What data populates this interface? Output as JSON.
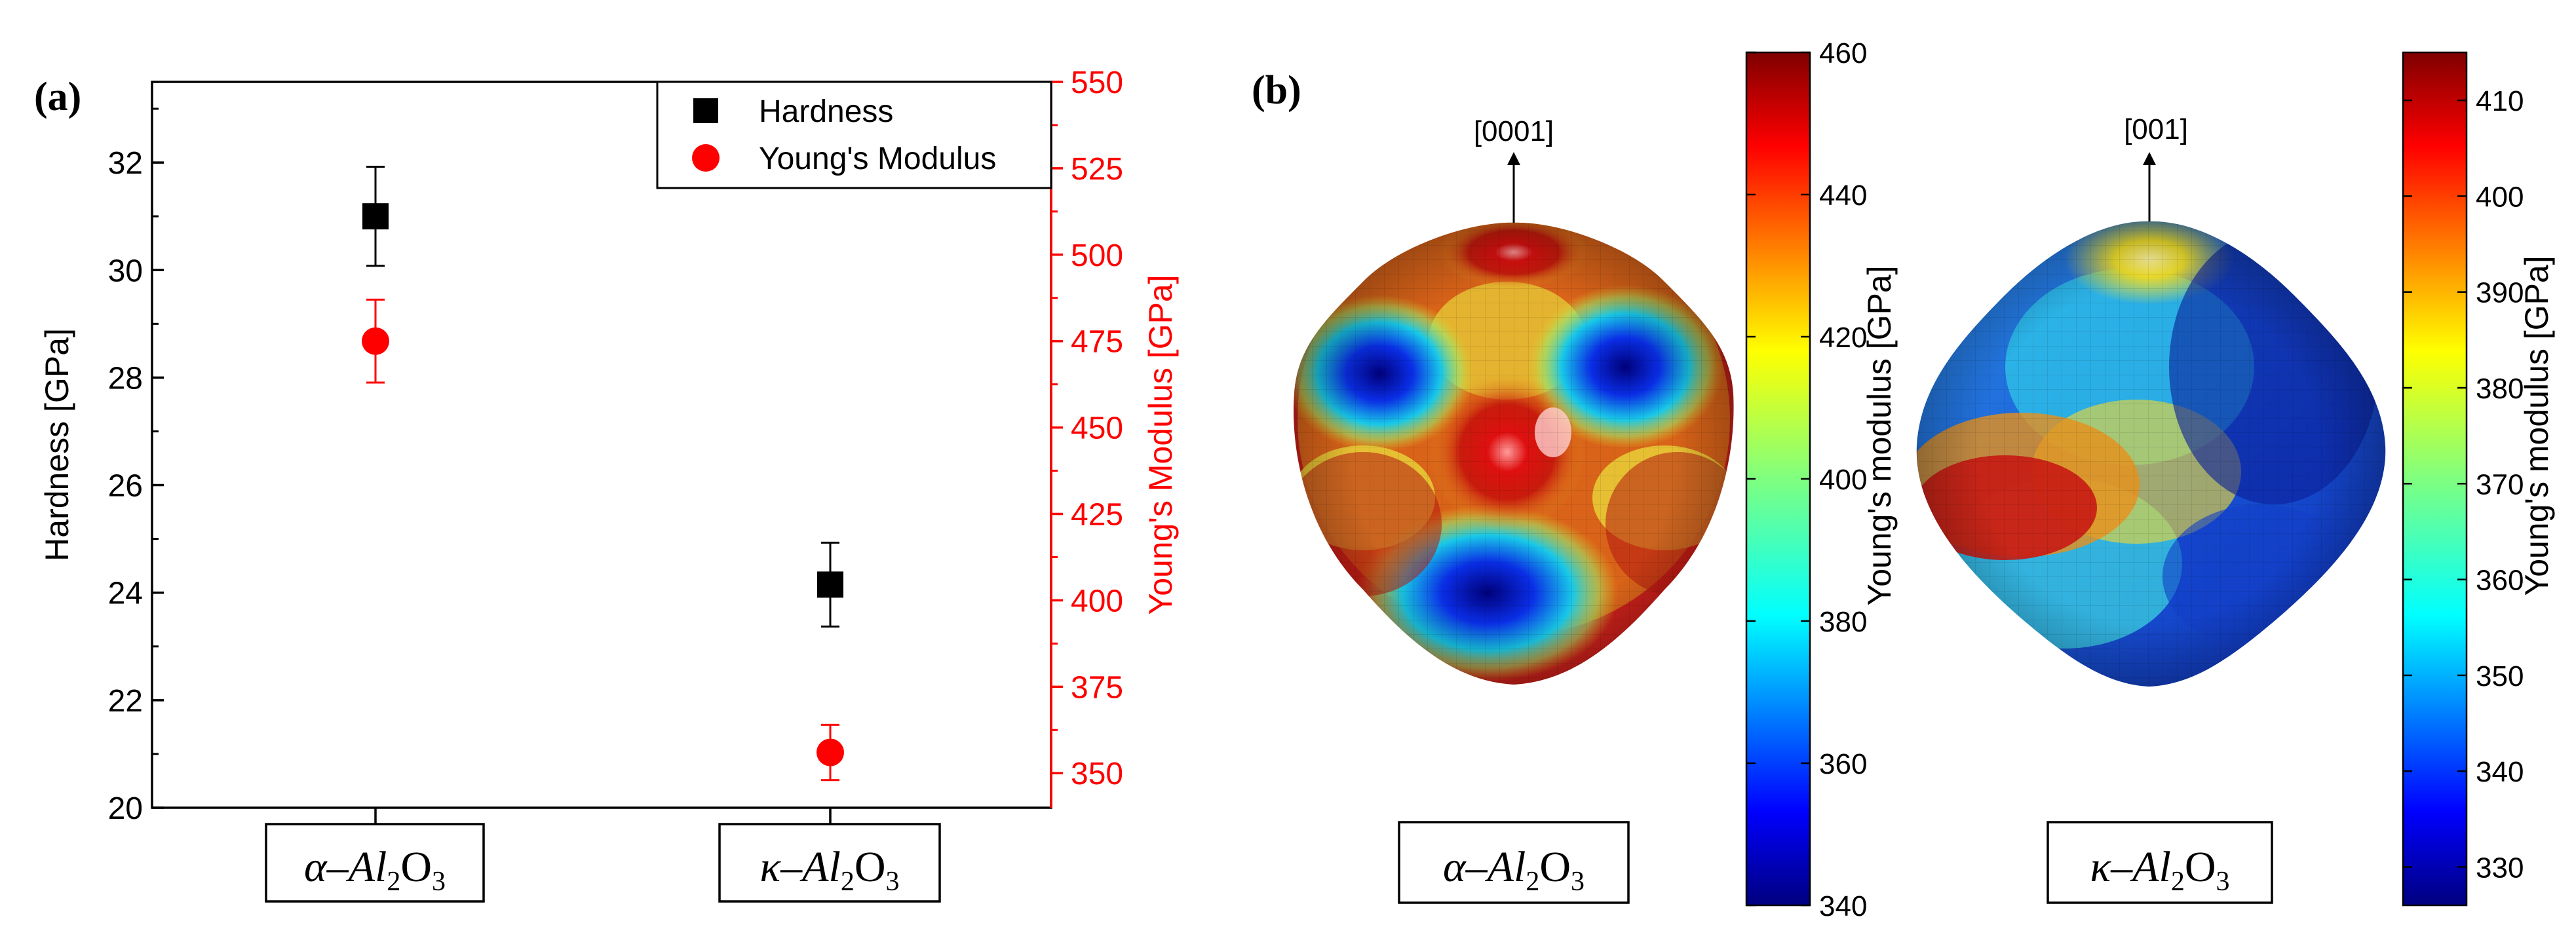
{
  "panel_labels": {
    "a": "(a)",
    "b": "(b)"
  },
  "colors": {
    "hardness": "#000000",
    "youngs": "#ff0000",
    "axis": "#000000"
  },
  "icons": {
    "hardness_marker": "square-marker-icon",
    "youngs_marker": "circle-marker-icon"
  },
  "chart_data": [
    {
      "type": "scatter",
      "title": "",
      "categories": [
        "α–Al2O3",
        "κ–Al2O3"
      ],
      "x_labels": [
        {
          "pre": "α–Al",
          "sub1": "2",
          "mid": "O",
          "sub2": "3"
        },
        {
          "pre": "κ–Al",
          "sub1": "2",
          "mid": "O",
          "sub2": "3"
        }
      ],
      "xlabel": "",
      "ylabel": "Hardness [GPa]",
      "y2label": "Young's Modulus [GPa]",
      "ylim": [
        20,
        33.5
      ],
      "y2lim": [
        340,
        550
      ],
      "yticks": [
        20,
        22,
        24,
        26,
        28,
        30,
        32
      ],
      "y2ticks": [
        350,
        375,
        400,
        425,
        450,
        475,
        500,
        525,
        550
      ],
      "legend": "top-right",
      "series": [
        {
          "name": "Hardness",
          "axis": "left",
          "marker": "square",
          "values": [
            31.0,
            24.15
          ],
          "errors": [
            0.92,
            0.78
          ]
        },
        {
          "name": "Young's Modulus",
          "axis": "right",
          "marker": "circle",
          "values": [
            475,
            356
          ],
          "errors": [
            12,
            8
          ]
        }
      ]
    },
    {
      "type": "heatmap",
      "title": "",
      "label": "α–Al2O3",
      "caption": {
        "pre": "α–Al",
        "sub1": "2",
        "mid": "O",
        "sub2": "3"
      },
      "direction_label": "[0001]",
      "colorbar_label": "Young's modulus [GPa]",
      "colorbar_range": [
        340,
        460
      ],
      "colorbar_ticks": [
        340,
        360,
        380,
        400,
        420,
        440,
        460
      ]
    },
    {
      "type": "heatmap",
      "title": "",
      "label": "κ–Al2O3",
      "caption": {
        "pre": "κ–Al",
        "sub1": "2",
        "mid": "O",
        "sub2": "3"
      },
      "direction_label": "[001]",
      "colorbar_label": "Young's modulus [GPa]",
      "colorbar_range": [
        326,
        415
      ],
      "colorbar_ticks": [
        330,
        340,
        350,
        360,
        370,
        380,
        390,
        400,
        410
      ]
    }
  ]
}
